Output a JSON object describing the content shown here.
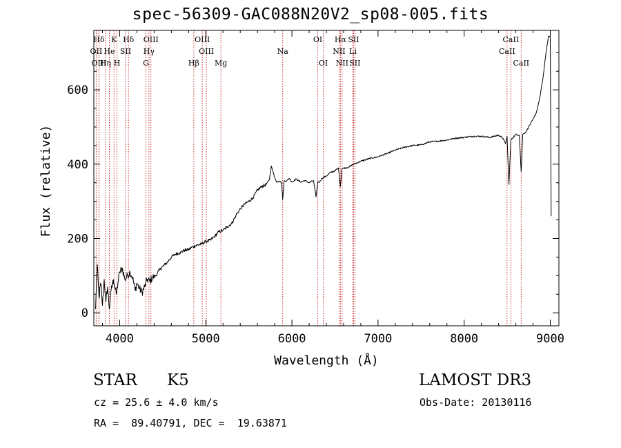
{
  "chart_data": {
    "type": "line",
    "title": "spec-56309-GAC088N20V2_sp08-005.fits",
    "xlabel": "Wavelength (Å)",
    "ylabel": "Flux (relative)",
    "xlim": [
      3700,
      9100
    ],
    "ylim": [
      -35,
      760
    ],
    "xticks": [
      4000,
      5000,
      6000,
      7000,
      8000,
      9000
    ],
    "xtick_labels": [
      "4000",
      "5000",
      "6000",
      "7000",
      "8000",
      "9000"
    ],
    "yticks": [
      0,
      200,
      400,
      600
    ],
    "ytick_labels": [
      "0",
      "200",
      "400",
      "600"
    ],
    "series": [
      {
        "name": "flux",
        "x": [
          3720,
          3740,
          3760,
          3780,
          3800,
          3820,
          3840,
          3860,
          3880,
          3900,
          3930,
          3960,
          3980,
          4000,
          4030,
          4060,
          4090,
          4120,
          4150,
          4180,
          4200,
          4230,
          4260,
          4290,
          4320,
          4350,
          4380,
          4420,
          4460,
          4500,
          4550,
          4600,
          4650,
          4700,
          4750,
          4800,
          4850,
          4900,
          4950,
          5000,
          5050,
          5100,
          5150,
          5200,
          5250,
          5300,
          5350,
          5400,
          5450,
          5500,
          5550,
          5600,
          5650,
          5700,
          5740,
          5760,
          5780,
          5800,
          5820,
          5850,
          5880,
          5893,
          5910,
          5940,
          5970,
          6000,
          6050,
          6100,
          6150,
          6200,
          6250,
          6280,
          6300,
          6320,
          6350,
          6400,
          6450,
          6500,
          6540,
          6563,
          6580,
          6620,
          6660,
          6700,
          6800,
          6900,
          7000,
          7100,
          7200,
          7300,
          7400,
          7500,
          7600,
          7700,
          7800,
          7900,
          8000,
          8100,
          8200,
          8300,
          8400,
          8450,
          8480,
          8498,
          8520,
          8542,
          8560,
          8600,
          8640,
          8662,
          8680,
          8720,
          8760,
          8800,
          8840,
          8880,
          8920,
          8950,
          8980,
          9000,
          9010
        ],
        "y": [
          10,
          130,
          40,
          80,
          20,
          90,
          30,
          70,
          10,
          60,
          90,
          50,
          80,
          110,
          120,
          90,
          100,
          110,
          95,
          60,
          80,
          65,
          55,
          70,
          90,
          85,
          95,
          100,
          115,
          125,
          135,
          150,
          158,
          162,
          168,
          170,
          178,
          182,
          185,
          192,
          195,
          205,
          218,
          222,
          232,
          240,
          262,
          280,
          292,
          300,
          310,
          330,
          340,
          345,
          360,
          395,
          380,
          365,
          352,
          355,
          350,
          305,
          355,
          355,
          362,
          352,
          360,
          352,
          356,
          350,
          356,
          312,
          352,
          352,
          362,
          368,
          378,
          382,
          390,
          340,
          388,
          390,
          392,
          398,
          408,
          415,
          420,
          428,
          438,
          445,
          450,
          452,
          460,
          462,
          465,
          470,
          472,
          475,
          475,
          472,
          478,
          470,
          455,
          475,
          345,
          465,
          470,
          480,
          478,
          380,
          480,
          488,
          505,
          520,
          540,
          580,
          640,
          700,
          745,
          740,
          260
        ]
      }
    ],
    "line_annotations": [
      {
        "label": "Hδ",
        "x": 3760,
        "row": 1
      },
      {
        "label": "OII",
        "x": 3727,
        "row": 2
      },
      {
        "label": "OIII",
        "x": 3760,
        "row": 3
      },
      {
        "label": "K",
        "x": 3934,
        "row": 1
      },
      {
        "label": "He",
        "x": 3880,
        "row": 2
      },
      {
        "label": "Hη",
        "x": 3835,
        "row": 3
      },
      {
        "label": "SII",
        "x": 4068,
        "row": 2
      },
      {
        "label": "H",
        "x": 3969,
        "row": 3
      },
      {
        "label": "Hδ",
        "x": 4102,
        "row": 1
      },
      {
        "label": "OIII",
        "x": 4363,
        "row": 1
      },
      {
        "label": "Hγ",
        "x": 4340,
        "row": 2
      },
      {
        "label": "G",
        "x": 4305,
        "row": 3
      },
      {
        "label": "OIII",
        "x": 4959,
        "row": 1
      },
      {
        "label": "OIII",
        "x": 5007,
        "row": 2
      },
      {
        "label": "Hβ",
        "x": 4861,
        "row": 3
      },
      {
        "label": "Mg",
        "x": 5175,
        "row": 3
      },
      {
        "label": "Na",
        "x": 5893,
        "row": 2
      },
      {
        "label": "OI",
        "x": 6300,
        "row": 1
      },
      {
        "label": "OI",
        "x": 6364,
        "row": 3
      },
      {
        "label": "Hα",
        "x": 6563,
        "row": 1
      },
      {
        "label": "NII",
        "x": 6548,
        "row": 2
      },
      {
        "label": "NII",
        "x": 6583,
        "row": 3
      },
      {
        "label": "SII",
        "x": 6716,
        "row": 1
      },
      {
        "label": "Li",
        "x": 6708,
        "row": 2
      },
      {
        "label": "SII",
        "x": 6731,
        "row": 3
      },
      {
        "label": "CaII",
        "x": 8542,
        "row": 1
      },
      {
        "label": "CaII",
        "x": 8498,
        "row": 2
      },
      {
        "label": "CaII",
        "x": 8662,
        "row": 3
      }
    ]
  },
  "info": {
    "object_class": "STAR",
    "subclass": "K5",
    "redshift": "cz = 25.6 ± 4.0 km/s",
    "coordinates": "RA =  89.40791, DEC =  19.63871",
    "survey": "LAMOST DR3",
    "obs_date": "Obs-Date: 20130116"
  },
  "colors": {
    "line": "#000000",
    "marker": "#c00000",
    "axis": "#000000"
  }
}
